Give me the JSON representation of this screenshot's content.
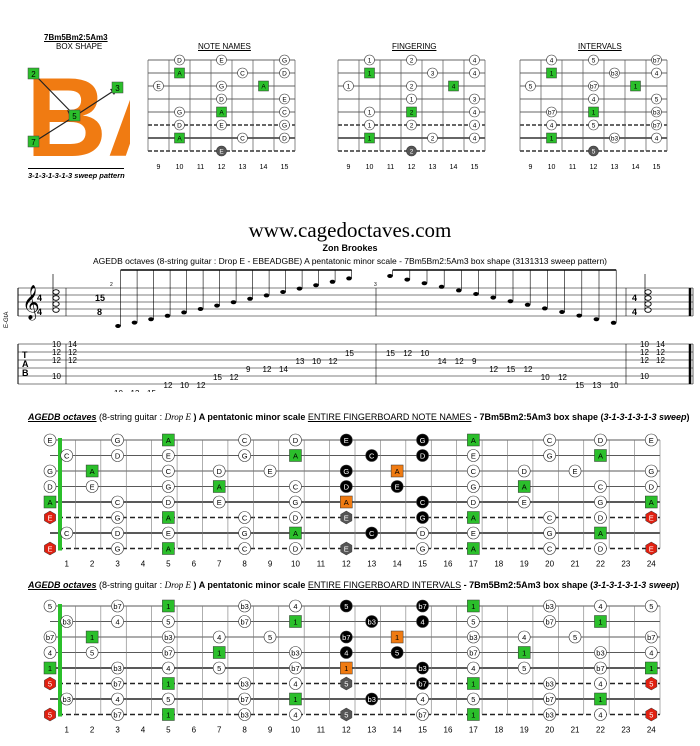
{
  "box_panel": {
    "title_line1": "7Bm5Bm2:5Am3",
    "title_line2": "BOX SHAPE",
    "big_letters": "BA",
    "pattern": "3-1-3-1-3-1-3 sweep pattern",
    "markers": [
      "2",
      "3",
      "5",
      "7"
    ]
  },
  "mini_diagrams": [
    {
      "title": "NOTE NAMES",
      "frets": [
        "9",
        "10",
        "11",
        "12",
        "13",
        "14",
        "15"
      ],
      "rows": [
        [
          "",
          "D",
          "",
          "E",
          "",
          "",
          "G"
        ],
        [
          "",
          "A",
          "",
          "",
          "C",
          "",
          "D"
        ],
        [
          "E",
          "",
          "",
          "G",
          "",
          "A",
          ""
        ],
        [
          "",
          "",
          "",
          "D",
          "",
          "",
          "E"
        ],
        [
          "",
          "G",
          "",
          "A",
          "",
          "",
          "C"
        ],
        [
          "",
          "D",
          "",
          "E",
          "",
          "",
          "G"
        ],
        [
          "",
          "A",
          "",
          "",
          "C",
          "",
          "D"
        ],
        [
          "",
          "",
          "",
          "E",
          "",
          "",
          ""
        ]
      ]
    },
    {
      "title": "FINGERING",
      "frets": [
        "9",
        "10",
        "11",
        "12",
        "13",
        "14",
        "15"
      ],
      "rows": [
        [
          "",
          "1",
          "",
          "2",
          "",
          "",
          "4"
        ],
        [
          "",
          "1",
          "",
          "",
          "3",
          "",
          "4"
        ],
        [
          "1",
          "",
          "",
          "2",
          "",
          "4",
          ""
        ],
        [
          "",
          "",
          "",
          "1",
          "",
          "",
          "3"
        ],
        [
          "",
          "1",
          "",
          "2",
          "",
          "",
          "4"
        ],
        [
          "",
          "1",
          "",
          "2",
          "",
          "",
          "4"
        ],
        [
          "",
          "1",
          "",
          "",
          "2",
          "",
          "4"
        ],
        [
          "",
          "",
          "",
          "2",
          "",
          "",
          ""
        ]
      ]
    },
    {
      "title": "INTERVALS",
      "frets": [
        "9",
        "10",
        "11",
        "12",
        "13",
        "14",
        "15"
      ],
      "rows": [
        [
          "",
          "4",
          "",
          "5",
          "",
          "",
          "b7"
        ],
        [
          "",
          "1",
          "",
          "",
          "b3",
          "",
          "4"
        ],
        [
          "5",
          "",
          "",
          "b7",
          "",
          "1",
          ""
        ],
        [
          "",
          "",
          "",
          "4",
          "",
          "",
          "5"
        ],
        [
          "",
          "b7",
          "",
          "1",
          "",
          "",
          "b3"
        ],
        [
          "",
          "4",
          "",
          "5",
          "",
          "",
          "b7"
        ],
        [
          "",
          "1",
          "",
          "",
          "b3",
          "",
          "4"
        ],
        [
          "",
          "",
          "",
          "5",
          "",
          "",
          ""
        ]
      ]
    }
  ],
  "website": "www.cagedoctaves.com",
  "author": "Zon Brookes",
  "subtitle": "AGEDB octaves (8-string guitar : Drop E - EBEADGBE) A pentatonic minor scale - 7Bm5Bm2:5Am3 box shape (3131313 sweep pattern)",
  "staff": {
    "clef_label": "E-GtA",
    "time_sig_start": [
      "4",
      "4"
    ],
    "time_sig_mid": [
      "15",
      "8"
    ],
    "time_sig_end": [
      "4",
      "4"
    ],
    "measure_numbers": [
      "2",
      "3"
    ],
    "tab_letters": [
      "T",
      "A",
      "B"
    ],
    "m1_tab": [
      [
        "10",
        "14"
      ],
      [
        "12",
        "12"
      ],
      [
        "12",
        "12"
      ],
      [
        "10"
      ]
    ],
    "m2_tab": [
      "10",
      "13",
      "15",
      "12",
      "10",
      "12",
      "15",
      "12",
      "9",
      "12",
      "14",
      "13",
      "10",
      "12",
      "15"
    ],
    "m3_tab": [
      "15",
      "12",
      "10",
      "14",
      "12",
      "9",
      "12",
      "15",
      "12",
      "10",
      "12",
      "15",
      "13",
      "10"
    ],
    "m4_tab": [
      [
        "10",
        "14"
      ],
      [
        "12",
        "12"
      ],
      [
        "12",
        "12"
      ],
      [
        "10"
      ]
    ]
  },
  "fretboard_notes": {
    "header_bold": "AGEDB octaves",
    "header_mid": "(8-string guitar :",
    "header_drop": "Drop E",
    "header_rest": ") A pentatonic minor scale",
    "header_u": "ENTIRE FINGERBOARD NOTE NAMES",
    "header_box": "- 7Bm5Bm2:5Am3 box shape (",
    "header_pattern": "3-1-3-1-3-1-3 sweep",
    "header_close": ")",
    "open": [
      "E",
      "",
      "G",
      "D",
      "A",
      "E",
      "",
      "E"
    ],
    "frets": [
      "1",
      "2",
      "3",
      "4",
      "5",
      "6",
      "7",
      "8",
      "9",
      "10",
      "11",
      "12",
      "13",
      "14",
      "15",
      "16",
      "17",
      "18",
      "19",
      "20",
      "21",
      "22",
      "23",
      "24"
    ]
  },
  "fretboard_intervals": {
    "header_bold": "AGEDB octaves",
    "header_mid": "(8-string guitar :",
    "header_drop": "Drop E",
    "header_rest": ") A pentatonic minor scale",
    "header_u": "ENTIRE FINGERBOARD INTERVALS",
    "header_box": "- 7Bm5Bm2:5Am3 box shape (",
    "header_pattern": "3-1-3-1-3-1-3 sweep",
    "header_close": ")",
    "open": [
      "5",
      "",
      "b7",
      "4",
      "1",
      "5",
      "",
      "5"
    ],
    "frets": [
      "1",
      "2",
      "3",
      "4",
      "5",
      "6",
      "7",
      "8",
      "9",
      "10",
      "11",
      "12",
      "13",
      "14",
      "15",
      "16",
      "17",
      "18",
      "19",
      "20",
      "21",
      "22",
      "23",
      "24"
    ]
  }
}
